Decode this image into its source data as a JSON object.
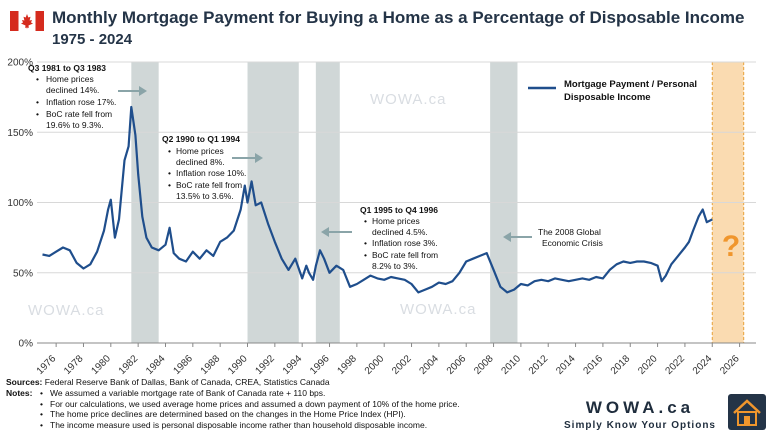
{
  "header": {
    "title": "Monthly Mortgage Payment for Buying a Home as a Percentage of Disposable Income",
    "subtitle": "1975 - 2024"
  },
  "colors": {
    "line": "#1f4e8c",
    "shade": "#a9b7b7",
    "forecast": "#f9d5a3",
    "question": "#f0962d"
  },
  "watermark": "WOWA.ca",
  "icons": {
    "flag": "canada-flag-icon",
    "logo": "house-logo-icon"
  },
  "chart_data": {
    "type": "line",
    "title": "Monthly Mortgage Payment for Buying a Home as a Percentage of Disposable Income",
    "xlim": [
      1974.6,
      2027.2
    ],
    "ylim": [
      0,
      200
    ],
    "xticks": [
      1976,
      1978,
      1980,
      1982,
      1984,
      1986,
      1988,
      1990,
      1992,
      1994,
      1996,
      1998,
      2000,
      2002,
      2004,
      2006,
      2008,
      2010,
      2012,
      2014,
      2016,
      2018,
      2020,
      2022,
      2024,
      2026
    ],
    "yticks": [
      0,
      50,
      100,
      150,
      200
    ],
    "ytick_labels": [
      "0%",
      "50%",
      "100%",
      "150%",
      "200%"
    ],
    "grid": "horizontal",
    "legend_position": "top-right",
    "series": [
      {
        "name": "Mortgage Payment / Personal Disposable Income",
        "x": [
          1975,
          1975.5,
          1976,
          1976.5,
          1977,
          1977.5,
          1978,
          1978.5,
          1979,
          1979.5,
          1979.8,
          1980,
          1980.3,
          1980.6,
          1981,
          1981.3,
          1981.5,
          1981.8,
          1982,
          1982.3,
          1982.6,
          1983,
          1983.5,
          1984,
          1984.3,
          1984.6,
          1985,
          1985.5,
          1986,
          1986.5,
          1987,
          1987.5,
          1988,
          1988.5,
          1989,
          1989.5,
          1989.8,
          1990,
          1990.3,
          1990.6,
          1991,
          1991.5,
          1992,
          1992.5,
          1993,
          1993.5,
          1994,
          1994.3,
          1994.5,
          1994.8,
          1995,
          1995.3,
          1995.6,
          1996,
          1996.5,
          1997,
          1997.5,
          1998,
          1998.5,
          1999,
          1999.5,
          2000,
          2000.5,
          2001,
          2001.5,
          2002,
          2002.5,
          2003,
          2003.5,
          2004,
          2004.5,
          2005,
          2005.5,
          2006,
          2006.5,
          2007,
          2007.5,
          2008,
          2008.5,
          2009,
          2009.5,
          2010,
          2010.5,
          2011,
          2011.5,
          2012,
          2012.5,
          2013,
          2013.5,
          2014,
          2014.5,
          2015,
          2015.5,
          2016,
          2016.5,
          2017,
          2017.5,
          2018,
          2018.5,
          2019,
          2019.5,
          2020,
          2020.3,
          2020.6,
          2021,
          2021.5,
          2022,
          2022.3,
          2022.6,
          2023,
          2023.3,
          2023.6,
          2024
        ],
        "values": [
          63,
          62,
          65,
          68,
          66,
          57,
          53,
          56,
          65,
          80,
          95,
          102,
          75,
          88,
          130,
          140,
          168,
          148,
          120,
          90,
          75,
          68,
          66,
          70,
          82,
          64,
          60,
          58,
          65,
          60,
          66,
          62,
          72,
          75,
          80,
          95,
          112,
          100,
          115,
          98,
          100,
          85,
          72,
          60,
          52,
          60,
          46,
          55,
          50,
          45,
          55,
          66,
          60,
          50,
          55,
          52,
          40,
          42,
          45,
          48,
          46,
          45,
          47,
          46,
          45,
          42,
          36,
          38,
          40,
          43,
          42,
          44,
          50,
          58,
          60,
          62,
          64,
          52,
          40,
          36,
          38,
          42,
          41,
          44,
          45,
          44,
          46,
          45,
          44,
          45,
          46,
          45,
          47,
          46,
          52,
          56,
          58,
          57,
          58,
          58,
          57,
          55,
          44,
          48,
          56,
          62,
          68,
          72,
          80,
          90,
          95,
          86,
          88
        ]
      }
    ],
    "shaded_periods": [
      [
        1981.5,
        1983.5
      ],
      [
        1990,
        1993.75
      ],
      [
        1995,
        1996.75
      ],
      [
        2007.75,
        2009.75
      ]
    ],
    "forecast_region": [
      2024,
      2026.3
    ],
    "annotations": [
      {
        "title": "Q3 1981 to Q3 1983",
        "bullets": [
          "Home prices declined 14%.",
          "Inflation rose 17%.",
          "BoC rate fell from 19.6% to 9.3%."
        ]
      },
      {
        "title": "Q2 1990 to Q1 1994",
        "bullets": [
          "Home prices declined 8%.",
          "Inflation rose 10%.",
          "BoC rate fell from 13.5% to 3.6%."
        ]
      },
      {
        "title": "Q1 1995 to Q4 1996",
        "bullets": [
          "Home prices declined 4.5%.",
          "Inflation rose 3%.",
          "BoC rate fell from 8.2% to 3%."
        ]
      },
      {
        "text": "The 2008 Global Economic Crisis"
      }
    ],
    "forecast_label": "?"
  },
  "footer": {
    "sources_label": "Sources:",
    "sources": "Federal Reserve Bank of Dallas, Bank of Canada, CREA, Statistics Canada",
    "notes_label": "Notes:",
    "notes": [
      "We assumed a variable mortgage rate of Bank of Canada rate + 110 bps.",
      "For our calculations, we used average home prices and assumed a down payment of 10% of the home price.",
      "The home price declines are determined based on the changes in the Home Price Index (HPI).",
      "The income measure used is personal disposable income rather than household disposable income."
    ],
    "brand": "WOWA.ca",
    "tagline": "Simply Know Your Options"
  }
}
